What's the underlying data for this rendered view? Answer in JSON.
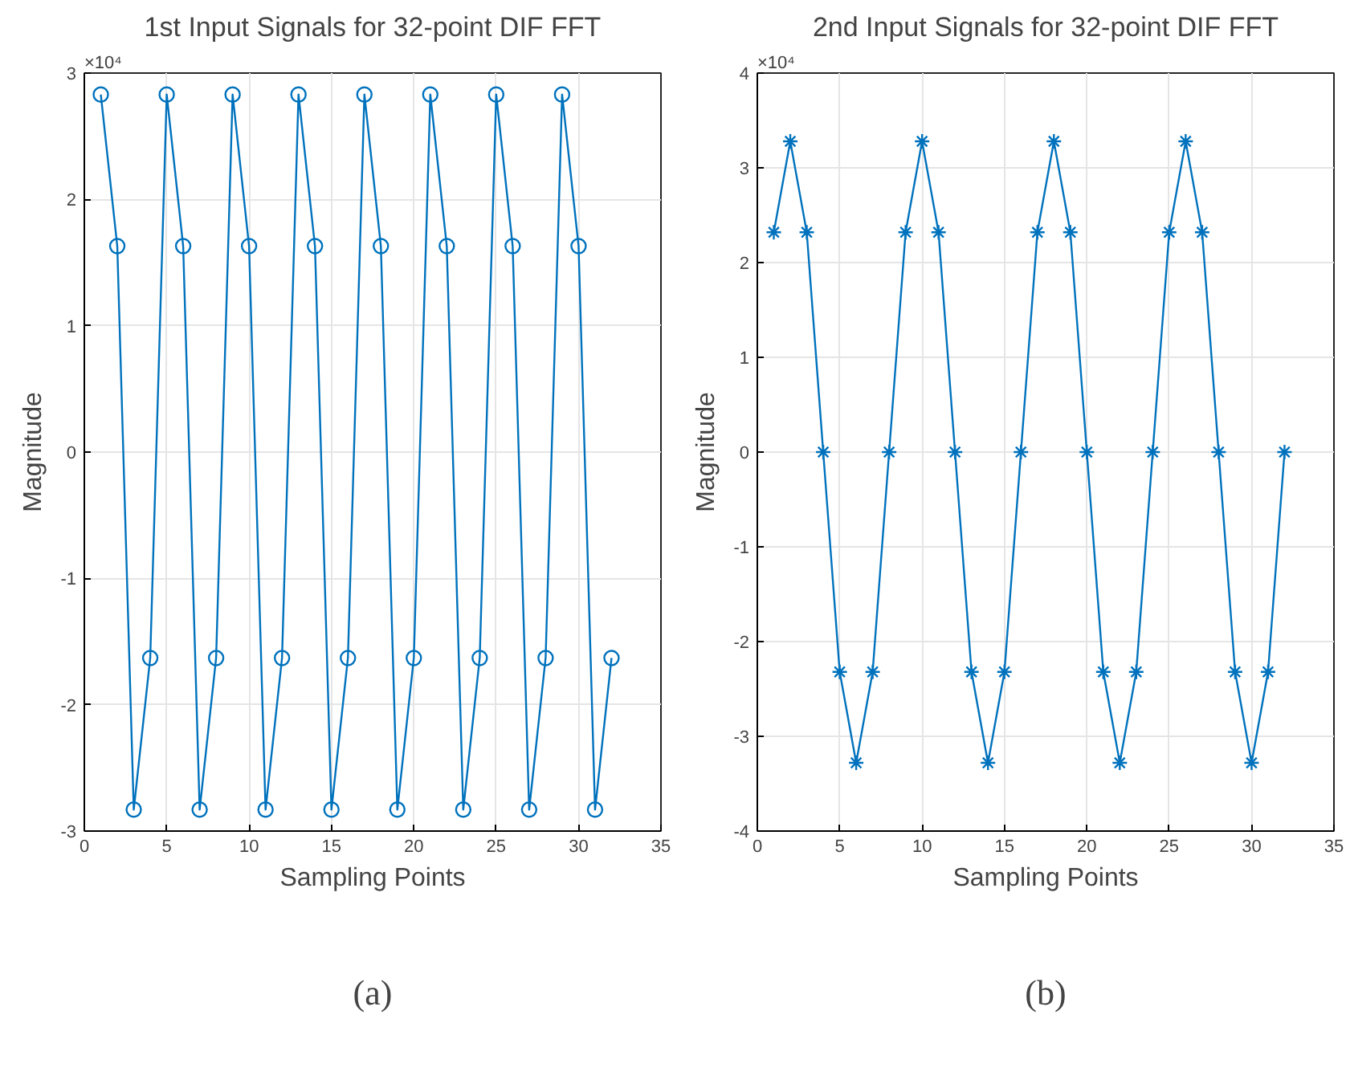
{
  "chart_data": [
    {
      "type": "line",
      "title": "1st Input Signals for 32-point DIF FFT",
      "xlabel": "Sampling Points",
      "ylabel": "Magnitude",
      "x": [
        1,
        2,
        3,
        4,
        5,
        6,
        7,
        8,
        9,
        10,
        11,
        12,
        13,
        14,
        15,
        16,
        17,
        18,
        19,
        20,
        21,
        22,
        23,
        24,
        25,
        26,
        27,
        28,
        29,
        30,
        31,
        32
      ],
      "series": [
        {
          "color": "#0072bd",
          "values": [
            2.83,
            1.63,
            -2.83,
            -1.63,
            2.83,
            1.63,
            -2.83,
            -1.63,
            2.83,
            1.63,
            -2.83,
            -1.63,
            2.83,
            1.63,
            -2.83,
            -1.63,
            2.83,
            1.63,
            -2.83,
            -1.63,
            2.83,
            1.63,
            -2.83,
            -1.63,
            2.83,
            1.63,
            -2.83,
            -1.63,
            2.83,
            1.63,
            -2.83,
            -1.63
          ]
        }
      ],
      "xlim": [
        0,
        35
      ],
      "xticks": [
        0,
        5,
        10,
        15,
        20,
        25,
        30,
        35
      ],
      "ylim": [
        -3,
        3
      ],
      "yticks": [
        -3,
        -2,
        -1,
        0,
        1,
        2,
        3
      ],
      "grid": true,
      "marker": "circle",
      "line_style": "solid",
      "annotations": [
        "×10⁴",
        "(a)"
      ]
    },
    {
      "type": "line",
      "title": "2nd Input Signals for 32-point DIF FFT",
      "xlabel": "Sampling Points",
      "ylabel": "Magnitude",
      "x": [
        1,
        2,
        3,
        4,
        5,
        6,
        7,
        8,
        9,
        10,
        11,
        12,
        13,
        14,
        15,
        16,
        17,
        18,
        19,
        20,
        21,
        22,
        23,
        24,
        25,
        26,
        27,
        28,
        29,
        30,
        31,
        32
      ],
      "series": [
        {
          "color": "#0072bd",
          "values": [
            2.32,
            3.28,
            2.32,
            0,
            -2.32,
            -3.28,
            -2.32,
            0,
            2.32,
            3.28,
            2.32,
            0,
            -2.32,
            -3.28,
            -2.32,
            0,
            2.32,
            3.28,
            2.32,
            0,
            -2.32,
            -3.28,
            -2.32,
            0,
            2.32,
            3.28,
            2.32,
            0,
            -2.32,
            -3.28,
            -2.32,
            0
          ]
        }
      ],
      "xlim": [
        0,
        35
      ],
      "xticks": [
        0,
        5,
        10,
        15,
        20,
        25,
        30,
        35
      ],
      "ylim": [
        -4,
        4
      ],
      "yticks": [
        -4,
        -3,
        -2,
        -1,
        0,
        1,
        2,
        3,
        4
      ],
      "grid": true,
      "marker": "cross",
      "line_style": "solid",
      "annotations": [
        "×10⁴",
        "(b)"
      ]
    }
  ]
}
